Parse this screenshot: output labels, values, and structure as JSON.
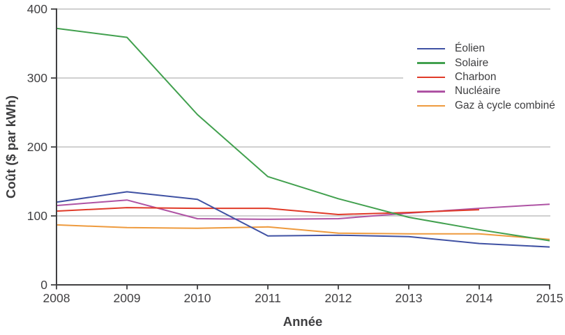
{
  "chart_data": {
    "type": "line",
    "title": "",
    "xlabel": "Année",
    "ylabel": "Coût ($ par kWh)",
    "x": [
      2008,
      2009,
      2010,
      2011,
      2012,
      2013,
      2014,
      2015
    ],
    "xlim": [
      2008,
      2015
    ],
    "ylim": [
      0,
      400
    ],
    "y_ticks": [
      0,
      100,
      200,
      300,
      400
    ],
    "grid": "horizontal-gridlines-on",
    "legend_position": "top-right",
    "series": [
      {
        "name": "Éolien",
        "slug": "eolien",
        "color": "#3f51a3",
        "values": [
          120,
          135,
          124,
          71,
          72,
          70,
          60,
          55
        ]
      },
      {
        "name": "Solaire",
        "slug": "solaire",
        "color": "#41a04e",
        "values": [
          372,
          359,
          247,
          157,
          125,
          98,
          80,
          64
        ]
      },
      {
        "name": "Charbon",
        "slug": "charbon",
        "color": "#e03a28",
        "values": [
          107,
          112,
          111,
          111,
          102,
          105,
          109,
          null
        ]
      },
      {
        "name": "Nucléaire",
        "slug": "nucleaire",
        "color": "#ae53a4",
        "values": [
          115,
          123,
          96,
          95,
          96,
          104,
          111,
          117
        ]
      },
      {
        "name": "Gaz à cycle combiné",
        "slug": "gaz",
        "color": "#ee9a3d",
        "values": [
          87,
          83,
          82,
          84,
          75,
          74,
          74,
          66
        ]
      }
    ],
    "colors": {
      "axis": "#414042",
      "grid": "#c9c9c9",
      "background": "#ffffff",
      "text": "#414042"
    }
  }
}
